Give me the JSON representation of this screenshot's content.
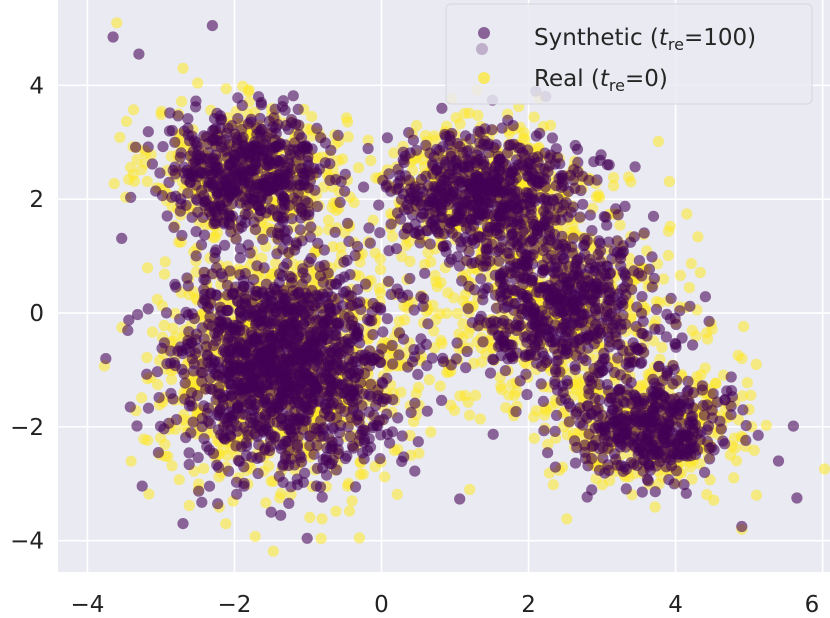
{
  "chart_data": {
    "type": "scatter",
    "title": "",
    "xlabel": "",
    "ylabel": "",
    "xlim": [
      -4.4,
      6.1
    ],
    "ylim": [
      -4.55,
      5.5
    ],
    "x_ticks": [
      -4,
      -2,
      0,
      2,
      4,
      6
    ],
    "y_ticks": [
      -4,
      -2,
      0,
      2,
      4
    ],
    "x_tick_labels": [
      "−4",
      "−2",
      "0",
      "2",
      "4",
      "6"
    ],
    "y_tick_labels": [
      "−4",
      "−2",
      "0",
      "2",
      "4"
    ],
    "grid": true,
    "background": "#eaeaf2",
    "legend_position": "top-right",
    "legend": [
      {
        "label_main": "Synthetic (",
        "label_var": "t",
        "label_sub": "re",
        "label_rest": "=100)",
        "color": "#440154",
        "marker": "circle"
      },
      {
        "label_main": "Real (",
        "label_var": "t",
        "label_sub": "re",
        "label_rest": "=0)",
        "color": "#fde725",
        "marker": "circle"
      }
    ],
    "series": [
      {
        "name": "Real",
        "color": "#fde725",
        "opacity": 0.55,
        "clusters": [
          {
            "cx": -1.8,
            "cy": 2.5,
            "sx": 0.65,
            "sy": 0.55,
            "n": 500
          },
          {
            "cx": -1.3,
            "cy": -0.9,
            "sx": 0.85,
            "sy": 1.0,
            "n": 1100
          },
          {
            "cx": 1.4,
            "cy": 2.1,
            "sx": 0.75,
            "sy": 0.65,
            "n": 550
          },
          {
            "cx": 2.4,
            "cy": 0.1,
            "sx": 0.8,
            "sy": 0.8,
            "n": 550
          },
          {
            "cx": 3.6,
            "cy": -2.0,
            "sx": 0.65,
            "sy": 0.55,
            "n": 380
          }
        ],
        "outliers": [
          {
            "x": -3.6,
            "y": 5.1
          },
          {
            "x": -2.7,
            "y": 4.3
          },
          {
            "x": -0.3,
            "y": -3.95
          },
          {
            "x": 5.1,
            "y": -3.2
          },
          {
            "x": 4.9,
            "y": -3.8
          },
          {
            "x": 4.8,
            "y": -2.2
          },
          {
            "x": 0.4,
            "y": -2.5
          },
          {
            "x": -0.4,
            "y": -3.3
          },
          {
            "x": 1.2,
            "y": -3.1
          }
        ]
      },
      {
        "name": "Synthetic",
        "color": "#440154",
        "opacity": 0.58,
        "clusters": [
          {
            "cx": -1.8,
            "cy": 2.5,
            "sx": 0.55,
            "sy": 0.5,
            "n": 520
          },
          {
            "cx": -1.3,
            "cy": -0.9,
            "sx": 0.75,
            "sy": 0.9,
            "n": 1300
          },
          {
            "cx": 1.4,
            "cy": 2.1,
            "sx": 0.65,
            "sy": 0.55,
            "n": 600
          },
          {
            "cx": 2.4,
            "cy": 0.1,
            "sx": 0.7,
            "sy": 0.7,
            "n": 600
          },
          {
            "cx": 3.6,
            "cy": -2.0,
            "sx": 0.55,
            "sy": 0.45,
            "n": 420
          }
        ],
        "outliers": [
          {
            "x": -3.65,
            "y": 4.85
          },
          {
            "x": -3.3,
            "y": 4.55
          },
          {
            "x": -2.3,
            "y": 5.05
          },
          {
            "x": -3.75,
            "y": -0.8
          },
          {
            "x": -2.7,
            "y": -3.7
          },
          {
            "x": -1.5,
            "y": -3.5
          },
          {
            "x": 5.65,
            "y": -3.25
          },
          {
            "x": 5.4,
            "y": -2.6
          },
          {
            "x": 2.1,
            "y": 3.9
          },
          {
            "x": 4.9,
            "y": -3.75
          },
          {
            "x": 3.7,
            "y": 1.7
          }
        ]
      }
    ]
  }
}
